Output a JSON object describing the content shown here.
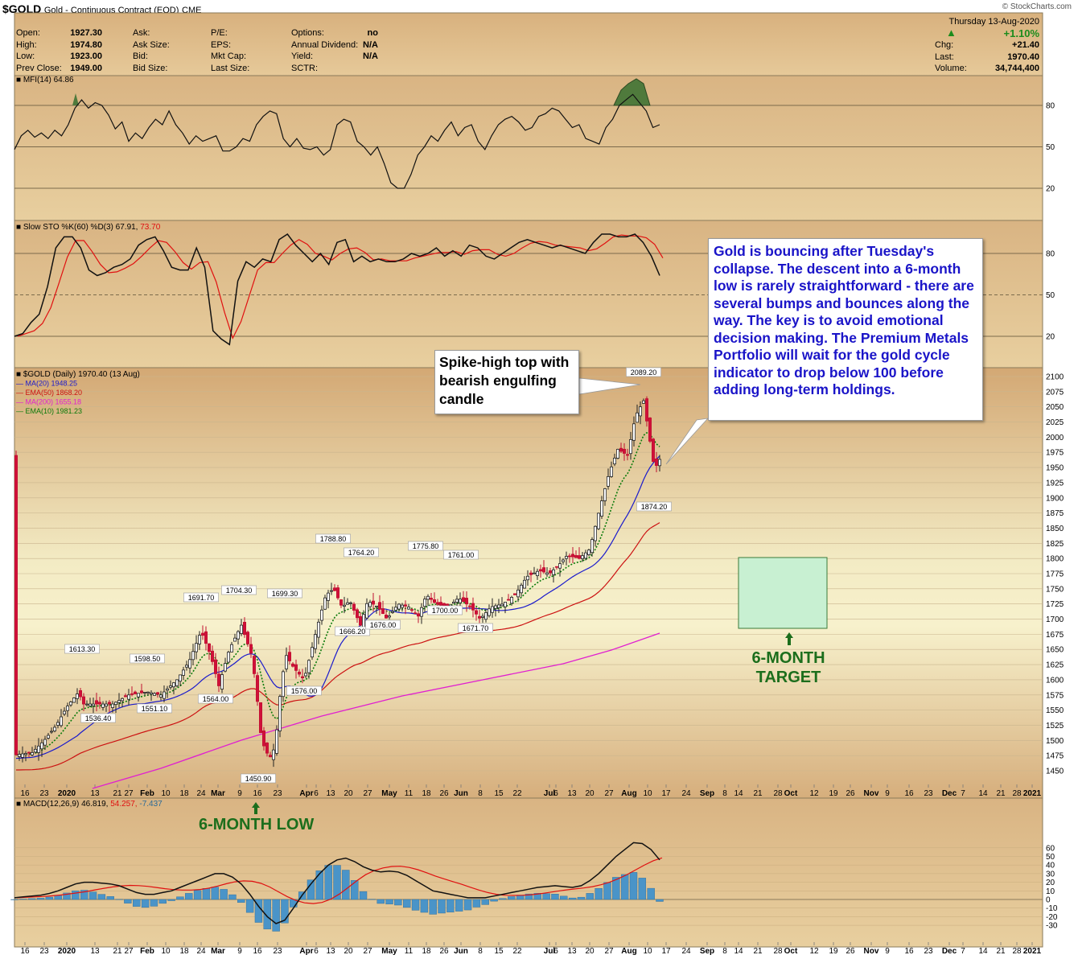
{
  "header": {
    "ticker": "$GOLD",
    "description": "Gold - Continuous Contract (EOD)",
    "exchange": "CME",
    "brand": "© StockCharts.com",
    "date": "Thursday 13-Aug-2020"
  },
  "quote_left": [
    {
      "label": "Open:",
      "value": "1927.30"
    },
    {
      "label": "High:",
      "value": "1974.80"
    },
    {
      "label": "Low:",
      "value": "1923.00"
    },
    {
      "label": "Prev Close:",
      "value": "1949.00"
    }
  ],
  "quote_mid1": [
    {
      "label": "Ask:",
      "value": ""
    },
    {
      "label": "Ask Size:",
      "value": ""
    },
    {
      "label": "Bid:",
      "value": ""
    },
    {
      "label": "Bid Size:",
      "value": ""
    }
  ],
  "quote_mid2": [
    {
      "label": "P/E:",
      "value": ""
    },
    {
      "label": "EPS:",
      "value": ""
    },
    {
      "label": "Mkt Cap:",
      "value": ""
    },
    {
      "label": "Last Size:",
      "value": ""
    }
  ],
  "quote_mid3": [
    {
      "label": "Options:",
      "value": "no"
    },
    {
      "label": "Annual Dividend:",
      "value": "N/A"
    },
    {
      "label": "Yield:",
      "value": "N/A"
    },
    {
      "label": "SCTR:",
      "value": ""
    }
  ],
  "quote_right": {
    "change_pct": "+1.10%",
    "rows": [
      {
        "label": "Chg:",
        "value": "+21.40"
      },
      {
        "label": "Last:",
        "value": "1970.40"
      },
      {
        "label": "Volume:",
        "value": "34,744,400"
      }
    ],
    "up_color": "#1c8c1c"
  },
  "panels": {
    "mfi": {
      "legend": "MFI(14) 64.86",
      "ticks": [
        "80",
        "50",
        "20"
      ]
    },
    "sto": {
      "legend_a": "Slow STO %K(60) %D(3) 67.91,",
      "legend_b": " 73.70",
      "ticks": [
        "80",
        "50",
        "20"
      ]
    },
    "price": {
      "legend": [
        {
          "text": "$GOLD (Daily) 1970.40 (13 Aug)",
          "color": "#000000"
        },
        {
          "text": "MA(20) 1948.25",
          "color": "#1a1acc"
        },
        {
          "text": "EMA(50) 1868.20",
          "color": "#cc1111"
        },
        {
          "text": "MA(200) 1655.18",
          "color": "#e020d0"
        },
        {
          "text": "EMA(10) 1981.23",
          "color": "#0a7a0a"
        }
      ]
    },
    "macd": {
      "legend_a": "MACD(12,26,9) 46.819,",
      "legend_b": " 54.257,",
      "legend_c": " -7.437",
      "ticks": [
        "60",
        "50",
        "40",
        "30",
        "20",
        "10",
        "0",
        "-10",
        "-20",
        "-30"
      ]
    }
  },
  "chart_data": {
    "type": "candlestick",
    "title": "$GOLD (Daily) 1970.40 (13 Aug)",
    "y_ticks": [
      2100,
      2075,
      2050,
      2025,
      2000,
      1975,
      1950,
      1925,
      1900,
      1875,
      1850,
      1825,
      1800,
      1775,
      1750,
      1725,
      1700,
      1675,
      1650,
      1625,
      1600,
      1575,
      1550,
      1525,
      1500,
      1475,
      1450
    ],
    "ylim": [
      1435,
      2112
    ],
    "x_ticks": [
      "16",
      "23",
      "2020",
      "13",
      "21",
      "27",
      "Feb",
      "10",
      "18",
      "24",
      "Mar",
      "9",
      "16",
      "23",
      "Apr",
      "6",
      "13",
      "20",
      "27",
      "May",
      "11",
      "18",
      "26",
      "Jun",
      "8",
      "15",
      "22",
      "Jul",
      "6",
      "13",
      "20",
      "27",
      "Aug",
      "10",
      "17",
      "24",
      "Sep",
      "8",
      "14",
      "21",
      "28",
      "Oct",
      "12",
      "19",
      "26",
      "Nov",
      "9",
      "16",
      "23",
      "Dec",
      "7",
      "14",
      "21",
      "28",
      "2021"
    ],
    "close_path": [
      [
        "16-Dec",
        1476
      ],
      [
        "23-Dec",
        1500
      ],
      [
        "2020",
        1530
      ],
      [
        "13-Jan",
        1560
      ],
      [
        "21-Jan",
        1560
      ],
      [
        "27-Jan",
        1580
      ],
      [
        "Feb",
        1582
      ],
      [
        "10-Feb",
        1575
      ],
      [
        "18-Feb",
        1605
      ],
      [
        "24-Feb",
        1660
      ],
      [
        "Mar",
        1630
      ],
      [
        "9-Mar",
        1690
      ],
      [
        "16-Mar",
        1520
      ],
      [
        "23-Mar",
        1480
      ],
      [
        "Apr",
        1600
      ],
      [
        "6-Apr",
        1670
      ],
      [
        "13-Apr",
        1760
      ],
      [
        "20-Apr",
        1700
      ],
      [
        "27-Apr",
        1720
      ],
      [
        "May",
        1700
      ],
      [
        "11-May",
        1710
      ],
      [
        "18-May",
        1740
      ],
      [
        "26-May",
        1720
      ],
      [
        "Jun",
        1730
      ],
      [
        "8-Jun",
        1700
      ],
      [
        "15-Jun",
        1730
      ],
      [
        "22-Jun",
        1760
      ],
      [
        "Jul",
        1780
      ],
      [
        "6-Jul",
        1800
      ],
      [
        "13-Jul",
        1805
      ],
      [
        "20-Jul",
        1840
      ],
      [
        "27-Jul",
        1960
      ],
      [
        "Aug",
        1985
      ],
      [
        "10-Aug",
        2040
      ],
      [
        "13-Aug",
        1970.4
      ]
    ],
    "price_labels": [
      {
        "date": "Jan",
        "value": 1613.3,
        "label": "1613.30"
      },
      {
        "date": "Jan",
        "value": 1536.4,
        "label": "1536.40"
      },
      {
        "date": "Jan-27",
        "value": 1598.5,
        "label": "1598.50"
      },
      {
        "date": "Jan-27",
        "value": 1551.1,
        "label": "1551.10"
      },
      {
        "date": "Feb-18",
        "value": 1691.7,
        "label": "1691.70"
      },
      {
        "date": "Feb-24",
        "value": 1564.0,
        "label": "1564.00"
      },
      {
        "date": "Mar",
        "value": 1704.3,
        "label": "1704.30"
      },
      {
        "date": "Mar-16",
        "value": 1450.9,
        "label": "1450.90"
      },
      {
        "date": "Mar-23",
        "value": 1699.3,
        "label": "1699.30"
      },
      {
        "date": "Apr",
        "value": 1576.0,
        "label": "1576.00"
      },
      {
        "date": "Apr-13",
        "value": 1788.8,
        "label": "1788.80"
      },
      {
        "date": "Apr-20",
        "value": 1666.2,
        "label": "1666.20"
      },
      {
        "date": "Apr-27",
        "value": 1764.2,
        "label": "1764.20"
      },
      {
        "date": "May",
        "value": 1676.0,
        "label": "1676.00"
      },
      {
        "date": "May-18",
        "value": 1775.8,
        "label": "1775.80"
      },
      {
        "date": "May-26",
        "value": 1700.0,
        "label": "1700.00"
      },
      {
        "date": "Jun",
        "value": 1761.0,
        "label": "1761.00"
      },
      {
        "date": "Jun-8",
        "value": 1671.7,
        "label": "1671.70"
      },
      {
        "date": "Aug-6",
        "value": 2089.2,
        "label": "2089.20"
      },
      {
        "date": "Aug-12",
        "value": 1874.2,
        "label": "1874.20"
      }
    ]
  },
  "annotations": {
    "callout": "Gold is bouncing after Tuesday's collapse. The descent into a 6-month low is rarely straightforward - there are several bumps and bounces along the way. The key is to avoid emotional decision making. The Premium Metals Portfolio will wait for the gold cycle indicator to drop below 100 before adding long-term holdings.",
    "spike": "Spike-high top with bearish engulfing candle",
    "target_line1": "6-MONTH",
    "target_line2": "TARGET",
    "low": "6-MONTH LOW",
    "green": "#1c6e1c",
    "callout_color": "#1a14c8"
  }
}
